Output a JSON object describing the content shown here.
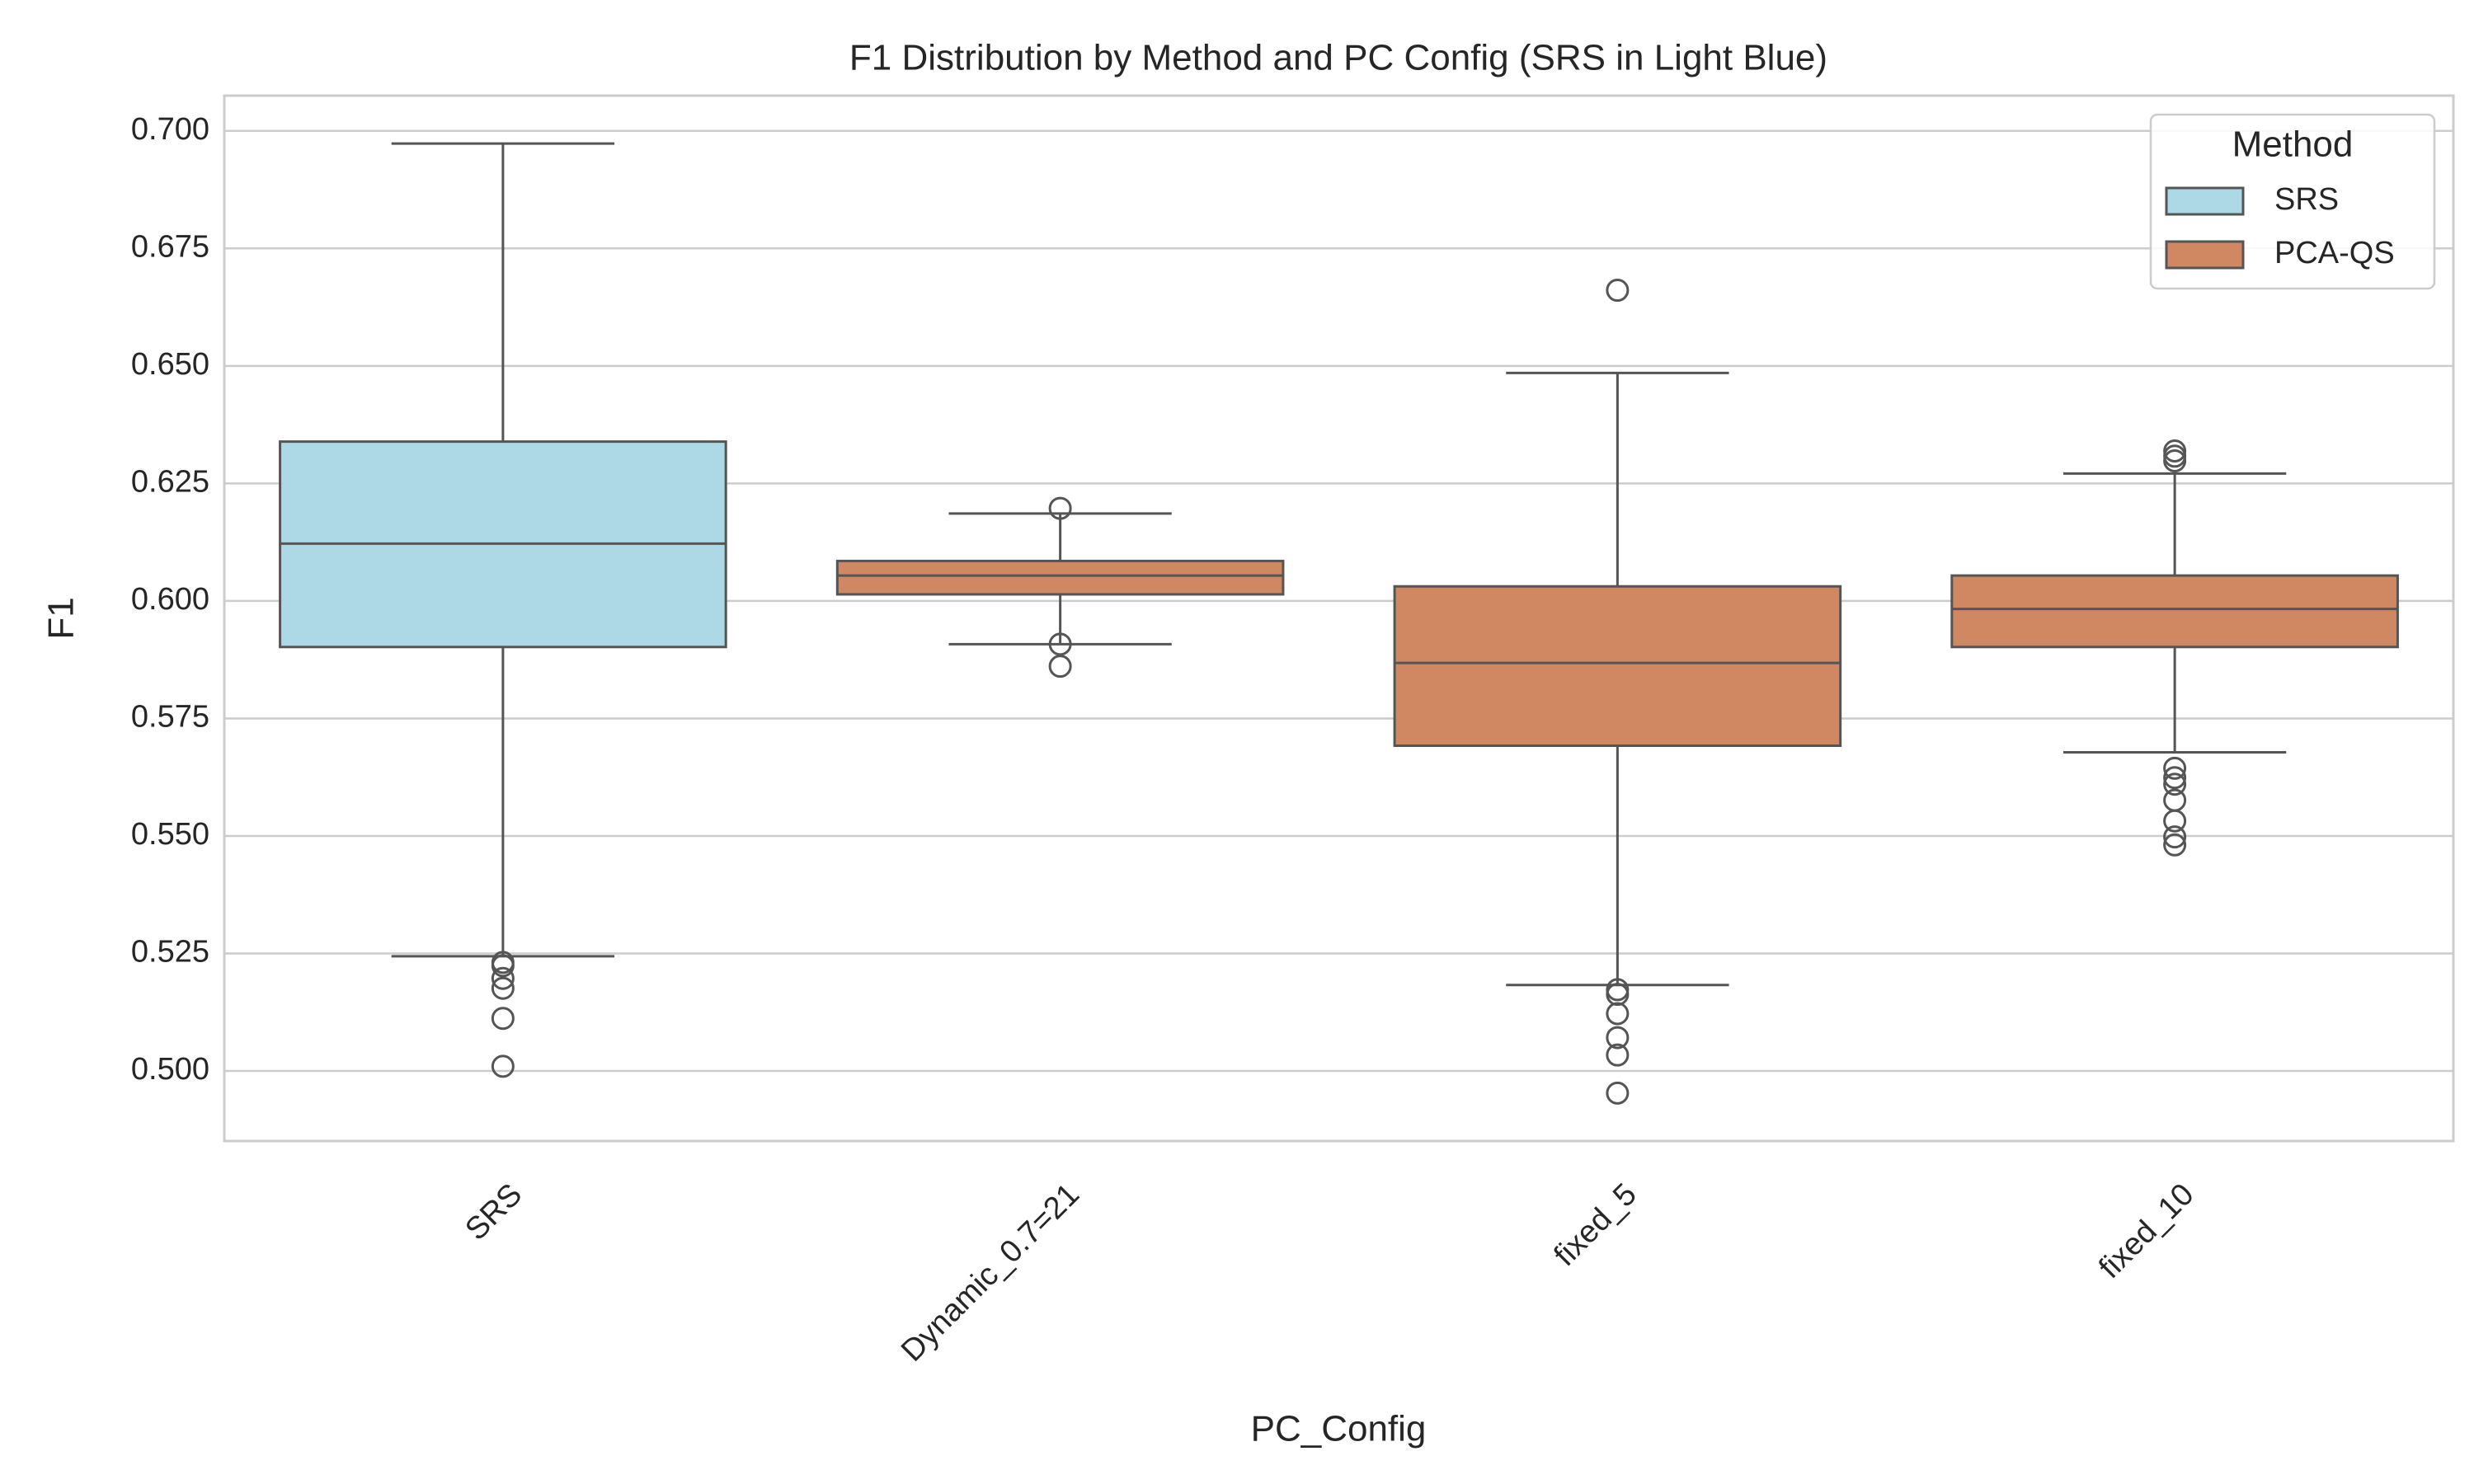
{
  "chart_data": {
    "type": "box",
    "title": "F1 Distribution by Method and PC Config (SRS in Light Blue)",
    "x_label": "PC_Config",
    "y_label": "F1",
    "categories": [
      "SRS",
      "Dynamic_0.7=21",
      "fixed_5",
      "fixed_10"
    ],
    "series": [
      {
        "name": "SRS",
        "color": "#add8e6",
        "values": [
          {
            "whislo": 0.5244,
            "q1": 0.5902,
            "med": 0.6122,
            "q3": 0.6339,
            "whishi": 0.6973,
            "fliers": [
              0.5231,
              0.5224,
              0.5197,
              0.5176,
              0.5112,
              0.501
            ]
          },
          null,
          null,
          null
        ]
      },
      {
        "name": "PCA-QS",
        "color": "#cf8862",
        "values": [
          null,
          {
            "whislo": 0.5908,
            "q1": 0.6014,
            "med": 0.6054,
            "q3": 0.6085,
            "whishi": 0.6186,
            "fliers": [
              0.6197,
              0.5908,
              0.5861
            ]
          },
          {
            "whislo": 0.5183,
            "q1": 0.5692,
            "med": 0.5868,
            "q3": 0.6031,
            "whishi": 0.6485,
            "fliers": [
              0.6661,
              0.5173,
              0.5163,
              0.5122,
              0.5071,
              0.5034,
              0.4953
            ]
          },
          {
            "whislo": 0.5678,
            "q1": 0.5902,
            "med": 0.5983,
            "q3": 0.6054,
            "whishi": 0.6271,
            "fliers": [
              0.6319,
              0.6308,
              0.6298,
              0.5644,
              0.5624,
              0.561,
              0.5576,
              0.5532,
              0.5498,
              0.5481
            ]
          }
        ]
      }
    ],
    "ylim": [
      0.4851,
      0.7075
    ],
    "yticks": [
      {
        "value": 0.5,
        "label": "0.500"
      },
      0.525,
      {
        "value": 0.55,
        "label": "0.550"
      },
      0.575,
      {
        "value": 0.6,
        "label": "0.600"
      },
      0.625,
      {
        "value": 0.65,
        "label": "0.650"
      },
      0.675,
      {
        "value": 0.7,
        "label": "0.700"
      }
    ],
    "grid": true,
    "legend": {
      "title": "Method",
      "position": "upper right"
    }
  }
}
